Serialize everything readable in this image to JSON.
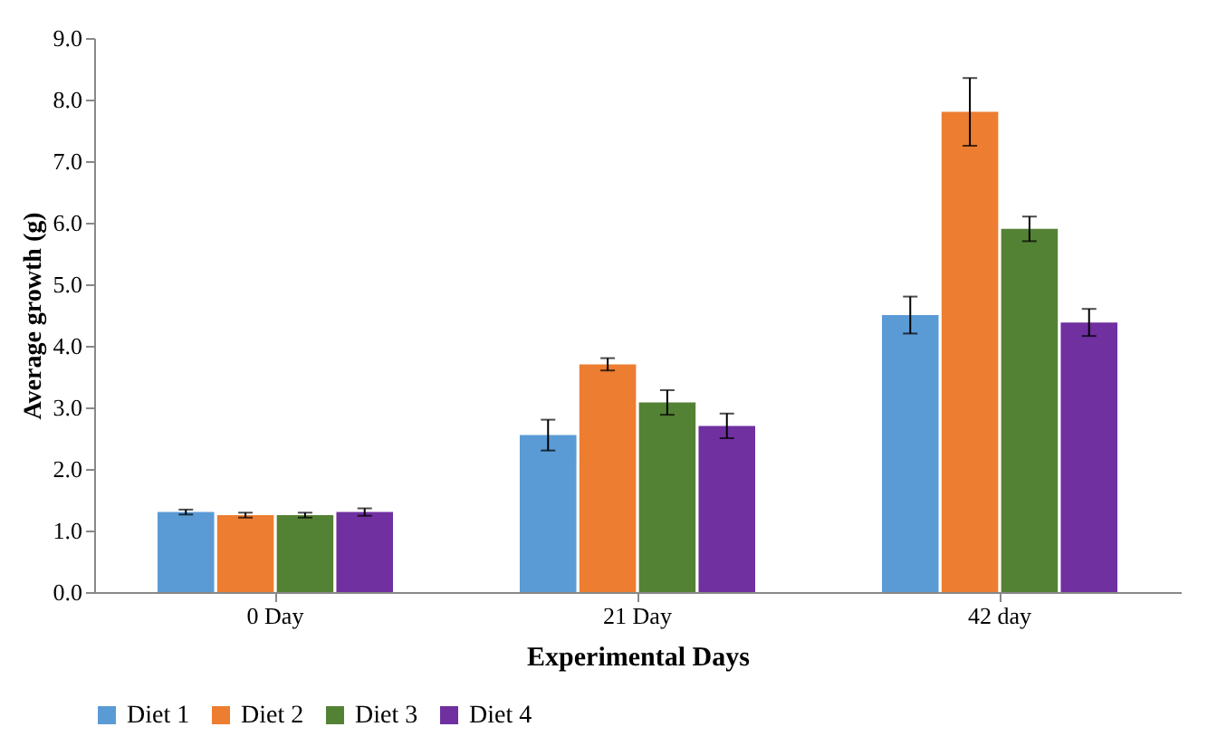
{
  "chart_data": {
    "type": "bar",
    "xlabel": "Experimental Days",
    "ylabel": "Average growth (g)",
    "categories": [
      "0 Day",
      "21 Day",
      "42 day"
    ],
    "series": [
      {
        "name": "Diet 1",
        "color": "#5b9bd5",
        "values": [
          1.3,
          2.55,
          4.5
        ],
        "errors": [
          0.04,
          0.25,
          0.3
        ]
      },
      {
        "name": "Diet 2",
        "color": "#ed7d31",
        "values": [
          1.25,
          3.7,
          7.8
        ],
        "errors": [
          0.04,
          0.1,
          0.55
        ]
      },
      {
        "name": "Diet 3",
        "color": "#548235",
        "values": [
          1.25,
          3.08,
          5.9
        ],
        "errors": [
          0.04,
          0.2,
          0.2
        ]
      },
      {
        "name": "Diet 4",
        "color": "#7030a0",
        "values": [
          1.3,
          2.7,
          4.38
        ],
        "errors": [
          0.06,
          0.2,
          0.22
        ]
      }
    ],
    "ylim": [
      0,
      9
    ],
    "yticks": [
      {
        "value": 0,
        "label": "0.0"
      },
      {
        "value": 1,
        "label": "1.0"
      },
      {
        "value": 2,
        "label": "2.0"
      },
      {
        "value": 3,
        "label": "3.0"
      },
      {
        "value": 4,
        "label": "4.0"
      },
      {
        "value": 5,
        "label": "5.0"
      },
      {
        "value": 6,
        "label": "6.0"
      },
      {
        "value": 7,
        "label": "7.0"
      },
      {
        "value": 8,
        "label": "8.0"
      },
      {
        "value": 9,
        "label": "9.0"
      }
    ],
    "grid": false,
    "legend": "bottom"
  }
}
